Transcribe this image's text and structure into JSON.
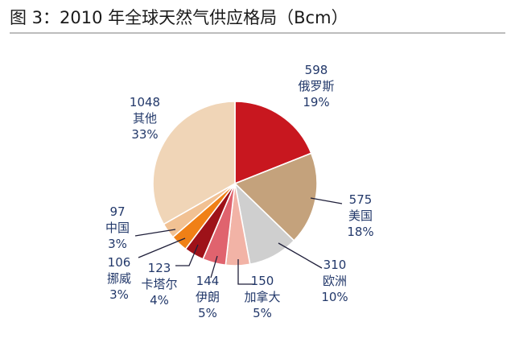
{
  "figure": {
    "title": "图 3：2010 年全球天然气供应格局（Bcm）"
  },
  "chart_data": {
    "type": "pie",
    "title": "图 3：2010 年全球天然气供应格局（Bcm）",
    "unit": "Bcm",
    "slices": [
      {
        "label": "俄罗斯",
        "value": 598,
        "percent": "19%",
        "color": "#c8171f"
      },
      {
        "label": "美国",
        "value": 575,
        "percent": "18%",
        "color": "#c4a27c"
      },
      {
        "label": "欧洲",
        "value": 310,
        "percent": "10%",
        "color": "#cfcfcf"
      },
      {
        "label": "加拿大",
        "value": 150,
        "percent": "5%",
        "color": "#f2b3a6"
      },
      {
        "label": "伊朗",
        "value": 144,
        "percent": "5%",
        "color": "#e0636e"
      },
      {
        "label": "卡塔尔",
        "value": 123,
        "percent": "4%",
        "color": "#9e1219"
      },
      {
        "label": "挪威",
        "value": 106,
        "percent": "3%",
        "color": "#f08016"
      },
      {
        "label": "中国",
        "value": 97,
        "percent": "3%",
        "color": "#f1c193"
      },
      {
        "label": "其他",
        "value": 1048,
        "percent": "33%",
        "color": "#f0d5b7"
      }
    ]
  }
}
